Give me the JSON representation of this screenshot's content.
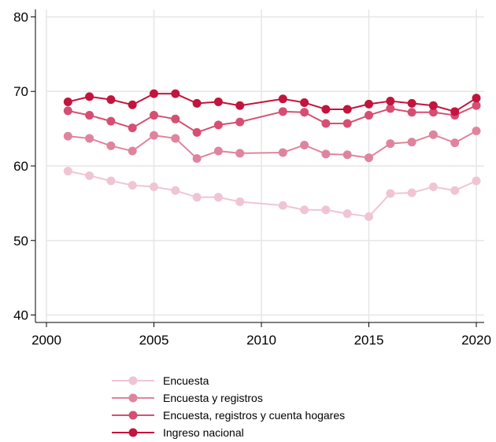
{
  "chart_data": {
    "type": "line",
    "title": "",
    "xlabel": "",
    "ylabel": "",
    "xlim": [
      2000,
      2020
    ],
    "ylim": [
      39,
      81
    ],
    "x_ticks": [
      2000,
      2005,
      2010,
      2015,
      2020
    ],
    "y_ticks": [
      40,
      50,
      60,
      70,
      80
    ],
    "grid": "vertical and horizontal gridlines",
    "legend_position": "bottom",
    "x": [
      2001,
      2002,
      2003,
      2004,
      2005,
      2006,
      2007,
      2008,
      2009,
      2011,
      2012,
      2013,
      2014,
      2015,
      2016,
      2017,
      2018,
      2019,
      2020
    ],
    "series": [
      {
        "name": "Encuesta",
        "color": "#f0c5d2",
        "values": [
          59.3,
          58.7,
          58.0,
          57.4,
          57.2,
          56.7,
          55.8,
          55.8,
          55.2,
          54.7,
          54.1,
          54.1,
          53.6,
          53.2,
          56.3,
          56.4,
          57.2,
          56.7,
          58.0
        ]
      },
      {
        "name": "Encuesta y registros",
        "color": "#e0849d",
        "values": [
          64.0,
          63.7,
          62.7,
          62.0,
          64.1,
          63.7,
          61.0,
          62.0,
          61.7,
          61.8,
          62.8,
          61.6,
          61.5,
          61.1,
          63.0,
          63.2,
          64.2,
          63.1,
          64.7
        ]
      },
      {
        "name": "Encuesta, registros y cuenta hogares",
        "color": "#d64f72",
        "values": [
          67.4,
          66.8,
          66.0,
          65.1,
          66.8,
          66.3,
          64.5,
          65.5,
          65.9,
          67.3,
          67.2,
          65.7,
          65.7,
          66.8,
          67.7,
          67.2,
          67.2,
          66.8,
          68.1
        ]
      },
      {
        "name": "Ingreso nacional",
        "color": "#c2143c",
        "values": [
          68.6,
          69.3,
          68.9,
          68.2,
          69.7,
          69.7,
          68.4,
          68.6,
          68.1,
          69.0,
          68.5,
          67.6,
          67.6,
          68.3,
          68.7,
          68.4,
          68.1,
          67.3,
          69.1
        ]
      }
    ]
  }
}
